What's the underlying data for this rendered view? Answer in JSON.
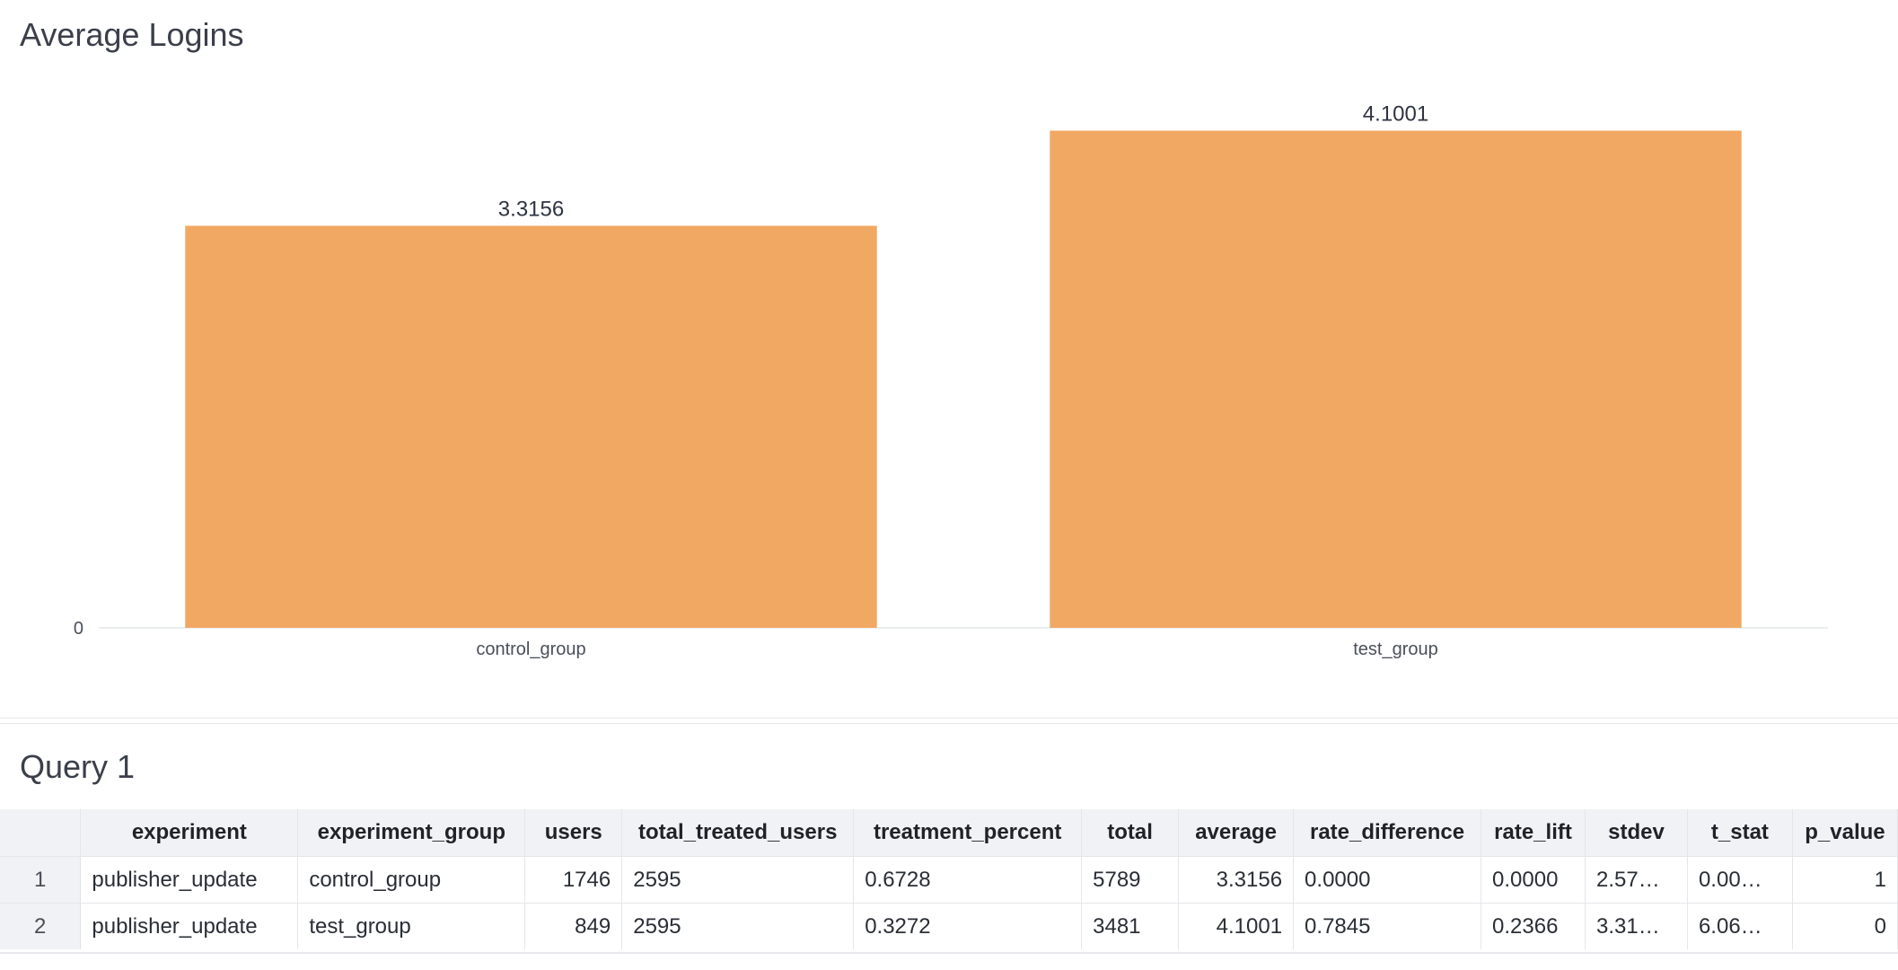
{
  "chart_data": {
    "type": "bar",
    "title": "Average Logins",
    "categories": [
      "control_group",
      "test_group"
    ],
    "values": [
      3.3156,
      4.1001
    ],
    "value_labels": [
      "3.3156",
      "4.1001"
    ],
    "y_tick_labels": [
      "0"
    ],
    "ylim": [
      0,
      4.6
    ],
    "bar_color": "#f1a862",
    "grid": false,
    "legend": "none"
  },
  "table": {
    "title": "Query 1",
    "columns": [
      "",
      "experiment",
      "experiment_group",
      "users",
      "total_treated_users",
      "treatment_percent",
      "total",
      "average",
      "rate_difference",
      "rate_lift",
      "stdev",
      "t_stat",
      "p_value"
    ],
    "rows": [
      [
        "1",
        "publisher_update",
        "control_group",
        "1746",
        "2595",
        "0.6728",
        "5789",
        "3.3156",
        "0.0000",
        "0.0000",
        "2.57…",
        "0.00…",
        "1"
      ],
      [
        "2",
        "publisher_update",
        "test_group",
        "849",
        "2595",
        "0.3272",
        "3481",
        "4.1001",
        "0.7845",
        "0.2366",
        "3.31…",
        "6.06…",
        "0"
      ]
    ]
  }
}
